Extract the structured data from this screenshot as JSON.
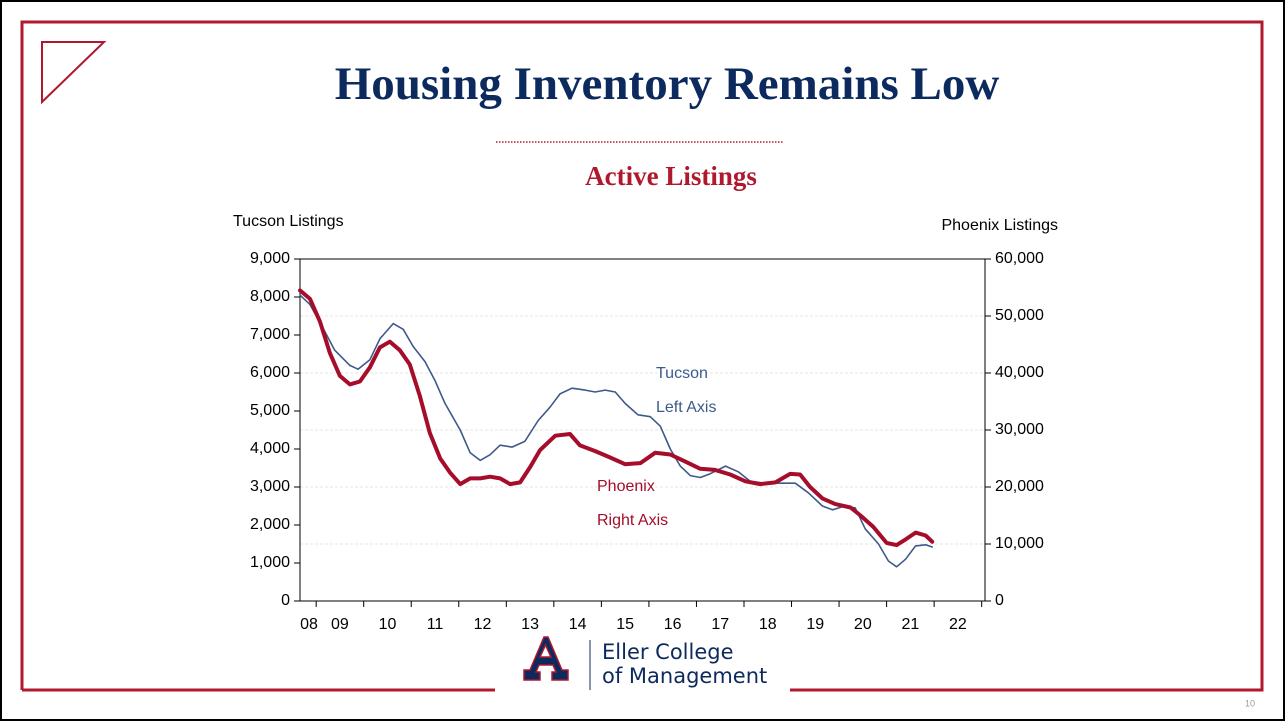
{
  "slide": {
    "logo_line1": "Eller College",
    "logo_line2": "of Management",
    "page_number": "10"
  },
  "chart_data": {
    "type": "line",
    "title": "Housing Inventory Remains Low",
    "subtitle": "Active Listings",
    "ylabel": "Tucson Listings",
    "y2label": "Phoenix Listings",
    "xlim": [
      2008.66,
      2023.07
    ],
    "xticks": [
      {
        "value": 2008.5,
        "label": "08"
      },
      {
        "value": 2009.5,
        "label": "09"
      },
      {
        "value": 2010.5,
        "label": "10"
      },
      {
        "value": 2011.5,
        "label": "11"
      },
      {
        "value": 2012.5,
        "label": "12"
      },
      {
        "value": 2013.5,
        "label": "13"
      },
      {
        "value": 2014.5,
        "label": "14"
      },
      {
        "value": 2015.5,
        "label": "15"
      },
      {
        "value": 2016.5,
        "label": "16"
      },
      {
        "value": 2017.5,
        "label": "17"
      },
      {
        "value": 2018.5,
        "label": "18"
      },
      {
        "value": 2019.5,
        "label": "19"
      },
      {
        "value": 2020.5,
        "label": "20"
      },
      {
        "value": 2021.5,
        "label": "21"
      },
      {
        "value": 2022.5,
        "label": "22"
      }
    ],
    "ylim": [
      0,
      9000
    ],
    "yticks": [
      0,
      {
        "value": 1000,
        "label": "1,000"
      },
      {
        "value": 2000,
        "label": "2,000"
      },
      {
        "value": 3000,
        "label": "3,000"
      },
      {
        "value": 4000,
        "label": "4,000"
      },
      {
        "value": 5000,
        "label": "5,000"
      },
      {
        "value": 6000,
        "label": "6,000"
      },
      {
        "value": 7000,
        "label": "7,000"
      },
      {
        "value": 8000,
        "label": "8,000"
      },
      {
        "value": 9000,
        "label": "9,000"
      }
    ],
    "y2lim": [
      0,
      60000
    ],
    "y2ticks": [
      0,
      {
        "value": 10000,
        "label": "10,000"
      },
      {
        "value": 20000,
        "label": "20,000"
      },
      {
        "value": 30000,
        "label": "30,000"
      },
      {
        "value": 40000,
        "label": "40,000"
      },
      {
        "value": 50000,
        "label": "50,000"
      },
      {
        "value": 60000,
        "label": "60,000"
      }
    ],
    "grid": true,
    "annotations": [
      {
        "lines": [
          "Tucson",
          "Left Axis"
        ],
        "color": "#3d5a8a"
      },
      {
        "lines": [
          "Phoenix",
          "Right Axis"
        ],
        "color": "#a50d2a"
      }
    ],
    "series": [
      {
        "name": "Tucson",
        "color": "#3d5a8a",
        "axis": "y",
        "x": [
          2008.66,
          2008.87,
          2009.18,
          2009.39,
          2009.71,
          2009.88,
          2010.13,
          2010.34,
          2010.62,
          2010.83,
          2011.04,
          2011.29,
          2011.5,
          2011.71,
          2012.03,
          2012.24,
          2012.45,
          2012.66,
          2012.87,
          2013.12,
          2013.39,
          2013.67,
          2013.92,
          2014.13,
          2014.38,
          2014.66,
          2014.87,
          2015.08,
          2015.29,
          2015.5,
          2015.77,
          2016.03,
          2016.24,
          2016.45,
          2016.66,
          2016.87,
          2017.08,
          2017.29,
          2017.61,
          2017.88,
          2018.13,
          2018.45,
          2018.76,
          2019.08,
          2019.35,
          2019.65,
          2019.86,
          2020.13,
          2020.34,
          2020.55,
          2020.83,
          2021.04,
          2021.21,
          2021.4,
          2021.61,
          2021.82,
          2021.96
        ],
        "values": [
          8050,
          7800,
          7100,
          6600,
          6200,
          6100,
          6350,
          6900,
          7300,
          7150,
          6700,
          6300,
          5800,
          5200,
          4500,
          3900,
          3700,
          3850,
          4100,
          4050,
          4200,
          4750,
          5100,
          5450,
          5600,
          5550,
          5500,
          5550,
          5500,
          5200,
          4900,
          4850,
          4600,
          4000,
          3550,
          3300,
          3250,
          3350,
          3550,
          3400,
          3150,
          3100,
          3100,
          3100,
          2850,
          2500,
          2400,
          2500,
          2450,
          1900,
          1500,
          1050,
          900,
          1100,
          1450,
          1480,
          1420
        ]
      },
      {
        "name": "Phoenix",
        "color": "#a50d2a",
        "axis": "y2",
        "x": [
          2008.66,
          2008.87,
          2009.08,
          2009.29,
          2009.5,
          2009.71,
          2009.92,
          2010.13,
          2010.34,
          2010.55,
          2010.76,
          2010.97,
          2011.18,
          2011.39,
          2011.61,
          2011.82,
          2012.03,
          2012.24,
          2012.45,
          2012.66,
          2012.87,
          2013.08,
          2013.29,
          2013.5,
          2013.71,
          2014.03,
          2014.34,
          2014.55,
          2014.87,
          2015.18,
          2015.5,
          2015.82,
          2016.13,
          2016.45,
          2016.76,
          2017.08,
          2017.39,
          2017.71,
          2018.03,
          2018.34,
          2018.66,
          2018.97,
          2019.18,
          2019.39,
          2019.65,
          2019.92,
          2020.24,
          2020.45,
          2020.72,
          2021.0,
          2021.21,
          2021.4,
          2021.61,
          2021.82,
          2021.96
        ],
        "values": [
          54500,
          53000,
          49000,
          43500,
          39500,
          38000,
          38500,
          41000,
          44500,
          45500,
          44000,
          41500,
          36000,
          29500,
          25000,
          22500,
          20500,
          21500,
          21500,
          21800,
          21500,
          20500,
          20800,
          23500,
          26500,
          29000,
          29300,
          27300,
          26300,
          25200,
          24000,
          24200,
          26000,
          25700,
          24500,
          23200,
          23000,
          22200,
          21000,
          20500,
          20800,
          22300,
          22200,
          20000,
          18000,
          17000,
          16400,
          15000,
          13000,
          10200,
          9800,
          10800,
          12000,
          11500,
          10400
        ]
      }
    ]
  }
}
